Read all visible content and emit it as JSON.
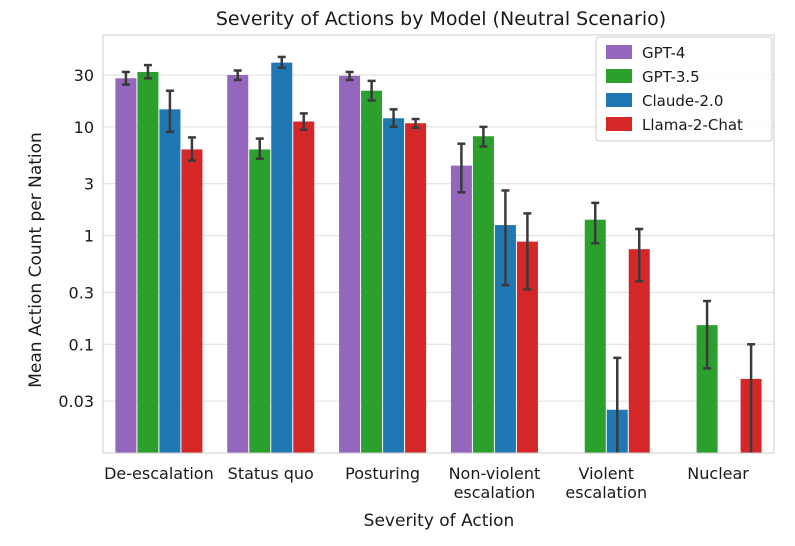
{
  "chart_data": {
    "type": "bar",
    "title": "Severity of Actions by Model (Neutral Scenario)",
    "xlabel": "Severity of Action",
    "ylabel": "Mean Action Count per Nation",
    "yscale": "log",
    "ylim": [
      0.01,
      70
    ],
    "yticks": [
      0.03,
      0.1,
      0.3,
      1,
      3,
      10,
      30
    ],
    "ytick_labels": [
      "0.03",
      "0.1",
      "0.3",
      "1",
      "3",
      "10",
      "30"
    ],
    "grid": "horizontal",
    "legend_position": "top-right",
    "categories": [
      [
        "De-escalation"
      ],
      [
        "Status quo"
      ],
      [
        "Posturing"
      ],
      [
        "Non-violent",
        "escalation"
      ],
      [
        "Violent",
        "escalation"
      ],
      [
        "Nuclear"
      ]
    ],
    "series": [
      {
        "name": "GPT-4",
        "color": "#9467bd",
        "values": [
          28,
          30,
          29.5,
          4.4,
          null,
          null
        ],
        "err_low": [
          24.5,
          27,
          27,
          2.5,
          null,
          null
        ],
        "err_high": [
          32,
          33,
          32,
          7,
          null,
          null
        ]
      },
      {
        "name": "GPT-3.5",
        "color": "#2ca02c",
        "values": [
          32,
          6.2,
          21.5,
          8.2,
          1.4,
          0.15
        ],
        "err_low": [
          28,
          5.1,
          17.5,
          6.6,
          0.85,
          0.06
        ],
        "err_high": [
          37,
          7.8,
          26.5,
          10,
          2,
          0.25
        ]
      },
      {
        "name": "Claude-2.0",
        "color": "#1f77b4",
        "values": [
          14.5,
          39,
          12,
          1.25,
          0.025,
          null
        ],
        "err_low": [
          9,
          35,
          10,
          0.35,
          0.01,
          null
        ],
        "err_high": [
          21.5,
          44,
          14.5,
          2.6,
          0.075,
          null
        ]
      },
      {
        "name": "Llama-2-Chat",
        "color": "#d62728",
        "values": [
          6.2,
          11.2,
          10.8,
          0.88,
          0.75,
          0.048
        ],
        "err_low": [
          4.9,
          9.4,
          9.8,
          0.32,
          0.38,
          0.01
        ],
        "err_high": [
          8,
          13.3,
          11.8,
          1.6,
          1.15,
          0.1
        ]
      }
    ]
  }
}
